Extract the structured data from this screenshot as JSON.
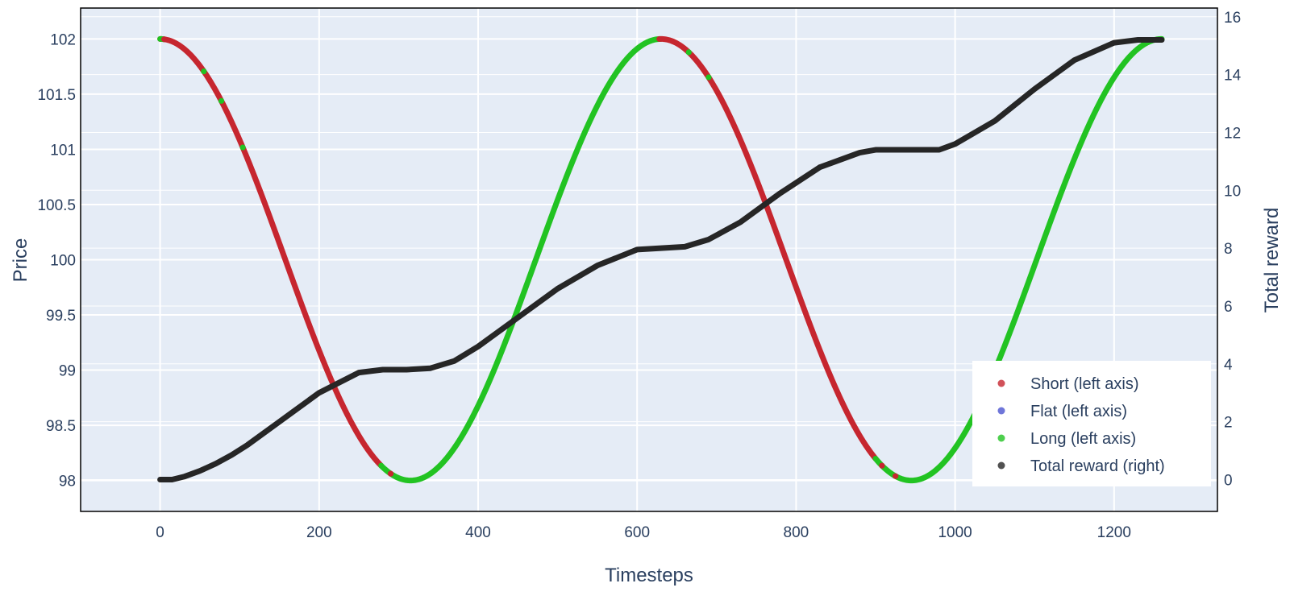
{
  "chart_data": {
    "type": "scatter",
    "xlabel": "Timesteps",
    "ylabel_left": "Price",
    "ylabel_right": "Total reward",
    "xlim": [
      -100,
      1330
    ],
    "ylim_left": [
      97.72,
      102.28
    ],
    "ylim_right": [
      -1.1,
      16.3
    ],
    "x_ticks": [
      0,
      200,
      400,
      600,
      800,
      1000,
      1200
    ],
    "y_left_ticks": [
      98,
      98.5,
      99,
      99.5,
      100,
      100.5,
      101,
      101.5,
      102
    ],
    "y_right_ticks": [
      0,
      2,
      4,
      6,
      8,
      10,
      12,
      14,
      16
    ],
    "grid": true,
    "legend_position": "bottom-right",
    "colors": {
      "short": "#c6262f",
      "flat": "#4b54cf",
      "long": "#22c322",
      "total_reward": "#262626",
      "plot_bg": "#e5ecf6",
      "grid": "#ffffff",
      "text": "#2a3f5f"
    },
    "price_model": {
      "description_formula": "price = 100 + 2*cos(2*pi*t/630)",
      "period": 630,
      "mean": 100,
      "amplitude": 2,
      "t_range": [
        0,
        1260
      ]
    },
    "position_segments": [
      {
        "series": "short",
        "from": 0,
        "to": 5
      },
      {
        "series": "long",
        "from": 0,
        "to": 5
      },
      {
        "series": "short",
        "from": 5,
        "to": 278
      },
      {
        "series": "long",
        "from": 278,
        "to": 630
      },
      {
        "series": "short",
        "from": 630,
        "to": 900
      },
      {
        "series": "long",
        "from": 900,
        "to": 1260
      }
    ],
    "position_blips": [
      {
        "series": "long",
        "x": 55
      },
      {
        "series": "long",
        "x": 77
      },
      {
        "series": "long",
        "x": 104
      },
      {
        "series": "short",
        "x": 290
      },
      {
        "series": "short",
        "x": 628
      },
      {
        "series": "short",
        "x": 645
      },
      {
        "series": "long",
        "x": 665
      },
      {
        "series": "long",
        "x": 690
      },
      {
        "series": "short",
        "x": 908
      },
      {
        "series": "short",
        "x": 925
      }
    ],
    "series": [
      {
        "name": "Short (left axis)",
        "key": "short",
        "axis": "left"
      },
      {
        "name": "Flat (left axis)",
        "key": "flat",
        "axis": "left"
      },
      {
        "name": "Long (left axis)",
        "key": "long",
        "axis": "left"
      },
      {
        "name": "Total reward (right)",
        "key": "total_reward",
        "axis": "right",
        "x": [
          0,
          15,
          30,
          50,
          70,
          90,
          110,
          150,
          200,
          250,
          280,
          310,
          340,
          370,
          400,
          450,
          500,
          550,
          600,
          630,
          660,
          690,
          730,
          780,
          830,
          880,
          900,
          940,
          980,
          1000,
          1050,
          1100,
          1150,
          1200,
          1230,
          1260
        ],
        "values": [
          0,
          0,
          0.1,
          0.3,
          0.55,
          0.85,
          1.2,
          2.0,
          3.0,
          3.7,
          3.8,
          3.8,
          3.85,
          4.1,
          4.6,
          5.6,
          6.6,
          7.4,
          7.95,
          8.0,
          8.05,
          8.3,
          8.9,
          9.9,
          10.8,
          11.3,
          11.4,
          11.4,
          11.4,
          11.6,
          12.4,
          13.5,
          14.5,
          15.1,
          15.2,
          15.2
        ]
      }
    ]
  }
}
